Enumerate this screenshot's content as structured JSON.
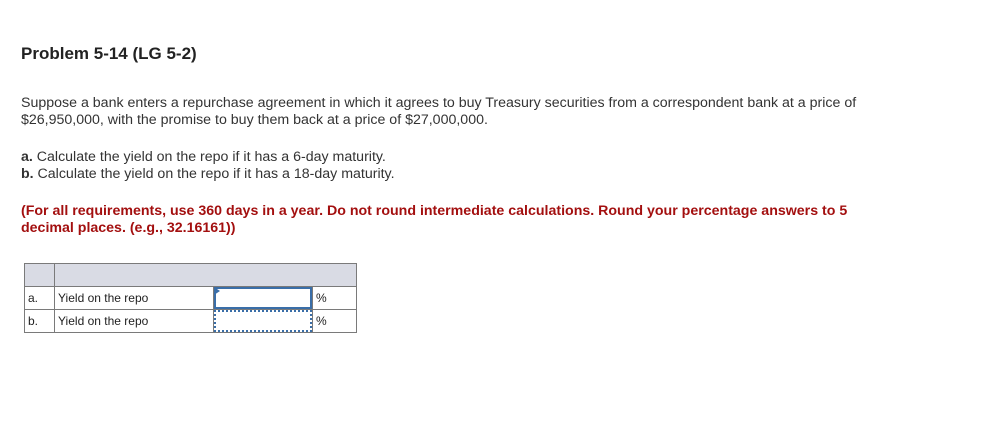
{
  "title": "Problem 5-14 (LG 5-2)",
  "intro_line1": "Suppose a bank enters a repurchase agreement in which it agrees to buy Treasury securities from a correspondent bank at a price of",
  "intro_line2": "$26,950,000, with the promise to buy them back at a price of $27,000,000.",
  "parts": [
    {
      "label": "a.",
      "text": " Calculate the yield on the repo if it has a 6-day maturity."
    },
    {
      "label": "b.",
      "text": " Calculate the yield on the repo if it has a 18-day maturity."
    }
  ],
  "instructions_line1": "(For all requirements, use 360 days in a year. Do not round intermediate calculations. Round your percentage answers to 5",
  "instructions_line2": "decimal places. (e.g., 32.16161))",
  "table": {
    "rows": [
      {
        "label": "a.",
        "item": "Yield on the repo",
        "value": "",
        "unit": "%"
      },
      {
        "label": "b.",
        "item": "Yield on the repo",
        "value": "",
        "unit": "%"
      }
    ]
  },
  "colors": {
    "instruction": "#a30f0f",
    "input_border": "#3a6ea8",
    "header_bg": "#d9dbe4"
  }
}
